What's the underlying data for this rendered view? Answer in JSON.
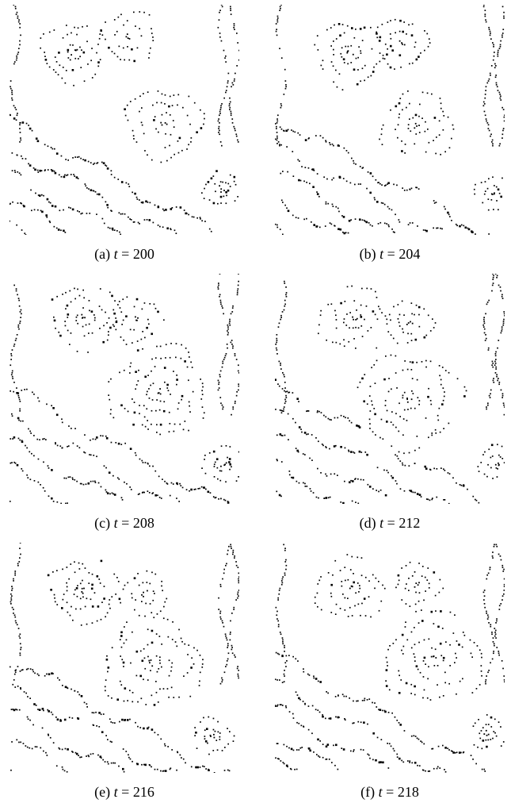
{
  "figure": {
    "panels": [
      {
        "label": "(a)",
        "variable": "t",
        "equals": "=",
        "value": "200"
      },
      {
        "label": "(b)",
        "variable": "t",
        "equals": "=",
        "value": "204"
      },
      {
        "label": "(c)",
        "variable": "t",
        "equals": "=",
        "value": "208"
      },
      {
        "label": "(d)",
        "variable": "t",
        "equals": "=",
        "value": "212"
      },
      {
        "label": "(e)",
        "variable": "t",
        "equals": "=",
        "value": "216"
      },
      {
        "label": "(f)",
        "variable": "t",
        "equals": "=",
        "value": "218"
      }
    ],
    "ink_color": "#000000",
    "background_color": "#ffffff"
  }
}
